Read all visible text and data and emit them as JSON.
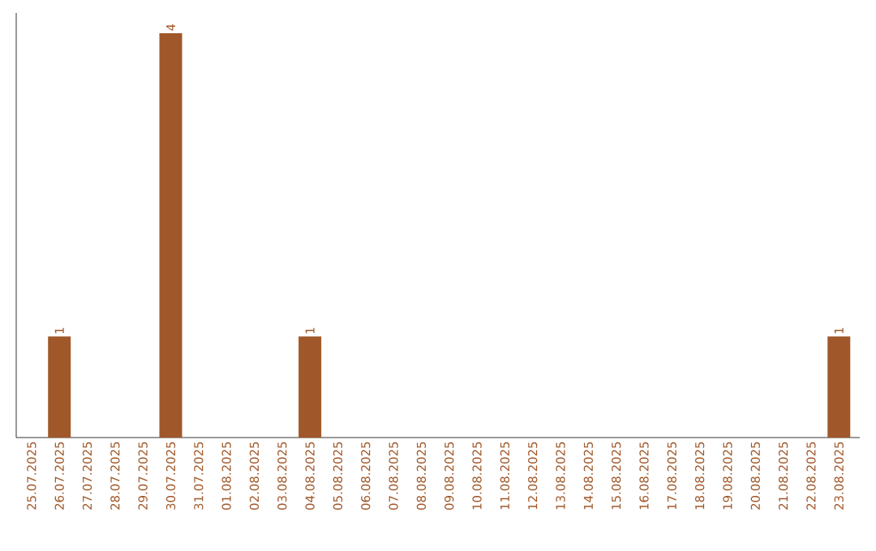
{
  "chart_data": {
    "type": "bar",
    "categories": [
      "25.07.2025",
      "26.07.2025",
      "27.07.2025",
      "28.07.2025",
      "29.07.2025",
      "30.07.2025",
      "31.07.2025",
      "01.08.2025",
      "02.08.2025",
      "03.08.2025",
      "04.08.2025",
      "05.08.2025",
      "06.08.2025",
      "07.08.2025",
      "08.08.2025",
      "09.08.2025",
      "10.08.2025",
      "11.08.2025",
      "12.08.2025",
      "13.08.2025",
      "14.08.2025",
      "15.08.2025",
      "16.08.2025",
      "17.08.2025",
      "18.08.2025",
      "19.08.2025",
      "20.08.2025",
      "21.08.2025",
      "22.08.2025",
      "23.08.2025"
    ],
    "values": [
      0,
      1,
      0,
      0,
      0,
      4,
      0,
      0,
      0,
      0,
      1,
      0,
      0,
      0,
      0,
      0,
      0,
      0,
      0,
      0,
      0,
      0,
      0,
      0,
      0,
      0,
      0,
      0,
      0,
      1
    ],
    "value_labels": [
      null,
      "1",
      null,
      null,
      null,
      "4",
      null,
      null,
      null,
      null,
      "1",
      null,
      null,
      null,
      null,
      null,
      null,
      null,
      null,
      null,
      null,
      null,
      null,
      null,
      null,
      null,
      null,
      null,
      null,
      "1"
    ],
    "color": "#a0582a",
    "ylim": [
      0,
      4.2
    ],
    "tick_labels": "x"
  }
}
